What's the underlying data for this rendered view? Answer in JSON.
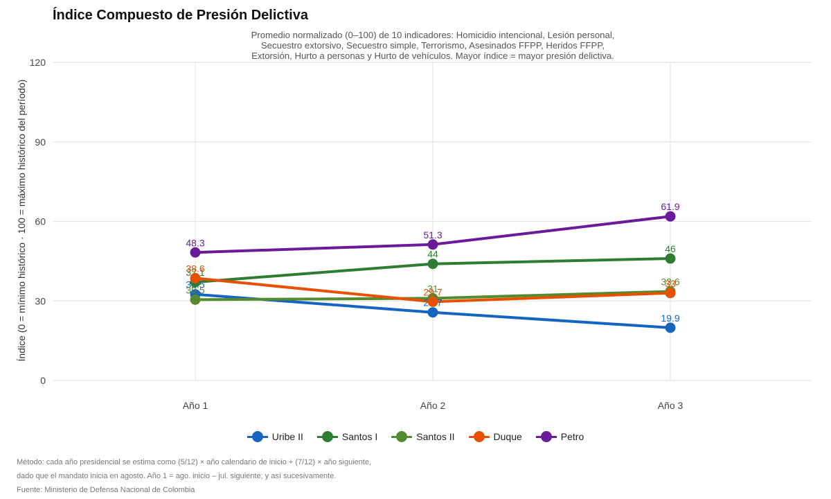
{
  "chart_data": {
    "type": "line",
    "title": "Índice Compuesto de Presión Delictiva",
    "subtitle": [
      "Promedio normalizado (0–100) de 10 indicadores: Homicidio intencional, Lesión personal,",
      "Secuestro extorsivo, Secuestro simple, Terrorismo, Asesinados FFPP, Heridos FFPP,",
      "Extorsión, Hurto a personas y Hurto de vehículos. Mayor índice = mayor presión delictiva."
    ],
    "xlabel": "",
    "ylabel": "Índice (0 = mínimo histórico · 100 = máximo histórico del período)",
    "categories": [
      "Año 1",
      "Año 2",
      "Año 3"
    ],
    "ylim": [
      0,
      120
    ],
    "yticks": [
      "0",
      "30",
      "60",
      "90",
      "120"
    ],
    "grid": true,
    "legend_position": "bottom",
    "series": [
      {
        "name": "Uribe II",
        "color": "#1565c0",
        "values": [
          32.5,
          25.7,
          19.9
        ],
        "labels": [
          "32.5",
          "25.7",
          "19.9"
        ]
      },
      {
        "name": "Santos I",
        "color": "#2e7d32",
        "values": [
          37.1,
          44,
          46
        ],
        "labels": [
          "37.1",
          "44",
          "46"
        ]
      },
      {
        "name": "Santos II",
        "color": "#558b2f",
        "values": [
          30.5,
          31,
          33.6
        ],
        "labels": [
          "30.5",
          "31",
          "33.6"
        ]
      },
      {
        "name": "Duque",
        "color": "#e65100",
        "values": [
          38.6,
          29.7,
          33
        ],
        "labels": [
          "38.6",
          "29.7",
          "33"
        ]
      },
      {
        "name": "Petro",
        "color": "#6a1b9a",
        "values": [
          48.3,
          51.3,
          61.9
        ],
        "labels": [
          "48.3",
          "51.3",
          "61.9"
        ]
      }
    ],
    "caption": [
      "Método: cada año presidencial se estima como (5/12) × año calendario de inicio + (7/12) × año siguiente,",
      "dado que el mandato inicia en agosto. Año 1 = ago. inicio – jul. siguiente; y así sucesivamente.",
      "Fuente: Ministerio de Defensa Nacional de Colombia"
    ]
  }
}
